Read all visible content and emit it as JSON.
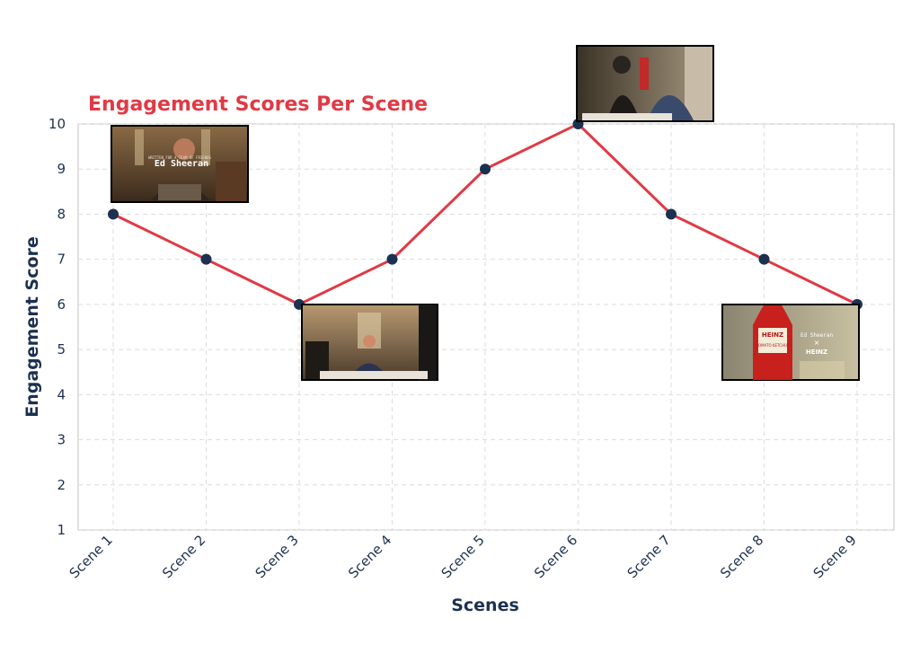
{
  "chart_data": {
    "type": "line",
    "title": "Engagement Scores Per Scene",
    "xlabel": "Scenes",
    "ylabel": "Engagement Score",
    "categories": [
      "Scene 1",
      "Scene 2",
      "Scene 3",
      "Scene 4",
      "Scene 5",
      "Scene 6",
      "Scene 7",
      "Scene 8",
      "Scene 9"
    ],
    "values": [
      8,
      7,
      6,
      7,
      9,
      10,
      8,
      7,
      6
    ],
    "yticks": [
      "1",
      "2",
      "3",
      "4",
      "5",
      "6",
      "7",
      "8",
      "9",
      "10"
    ],
    "ylim": [
      1,
      10
    ],
    "grid": true,
    "colors": {
      "title": "#e03a45",
      "line": "#e03a45",
      "marker": "#1c3150",
      "axis_text": "#1c3150",
      "grid": "#dddddd",
      "frame": "#cccccc"
    },
    "thumbnails": [
      {
        "scene": "Scene 1",
        "caption_small": "WRITTEN FOR A TEAM OF FRIENDS",
        "caption": "Ed Sheeran"
      },
      {
        "scene": "Scene 3"
      },
      {
        "scene": "Scene 6"
      },
      {
        "scene": "Scene 9",
        "bottle_brand": "HEINZ",
        "bottle_label": "TOMATO KETCHUP",
        "collab_line1": "Ed Sheeran",
        "collab_x": "×",
        "collab_line2": "HEINZ"
      }
    ]
  }
}
